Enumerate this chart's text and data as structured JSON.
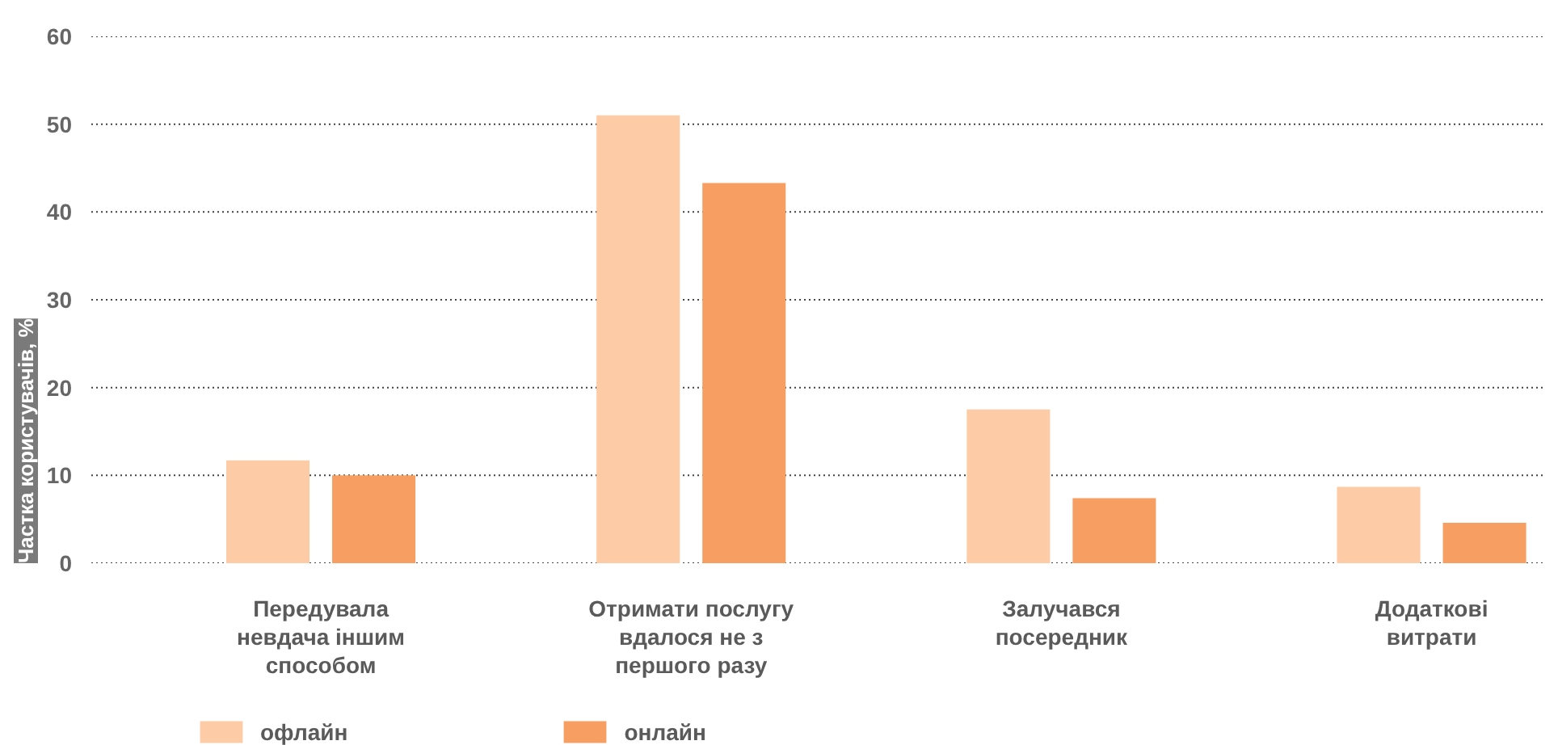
{
  "chart_data": {
    "type": "bar",
    "ylabel": "Частка користувачів, %",
    "categories": [
      "Передувала невдача іншим способом",
      "Отримати послугу вдалося не з першого разу",
      "Залучався посередник",
      "Додаткові витрати"
    ],
    "series": [
      {
        "name": "офлайн",
        "color": "#fdcba5",
        "values": [
          11.7,
          51,
          17.5,
          8.7
        ]
      },
      {
        "name": "онлайн",
        "color": "#f79f63",
        "values": [
          10,
          43.3,
          7.4,
          4.6
        ]
      }
    ],
    "ylim": [
      0,
      60
    ],
    "yticks": [
      0,
      10,
      20,
      30,
      40,
      50,
      60
    ],
    "grid": "y",
    "legend": "bottom left"
  }
}
